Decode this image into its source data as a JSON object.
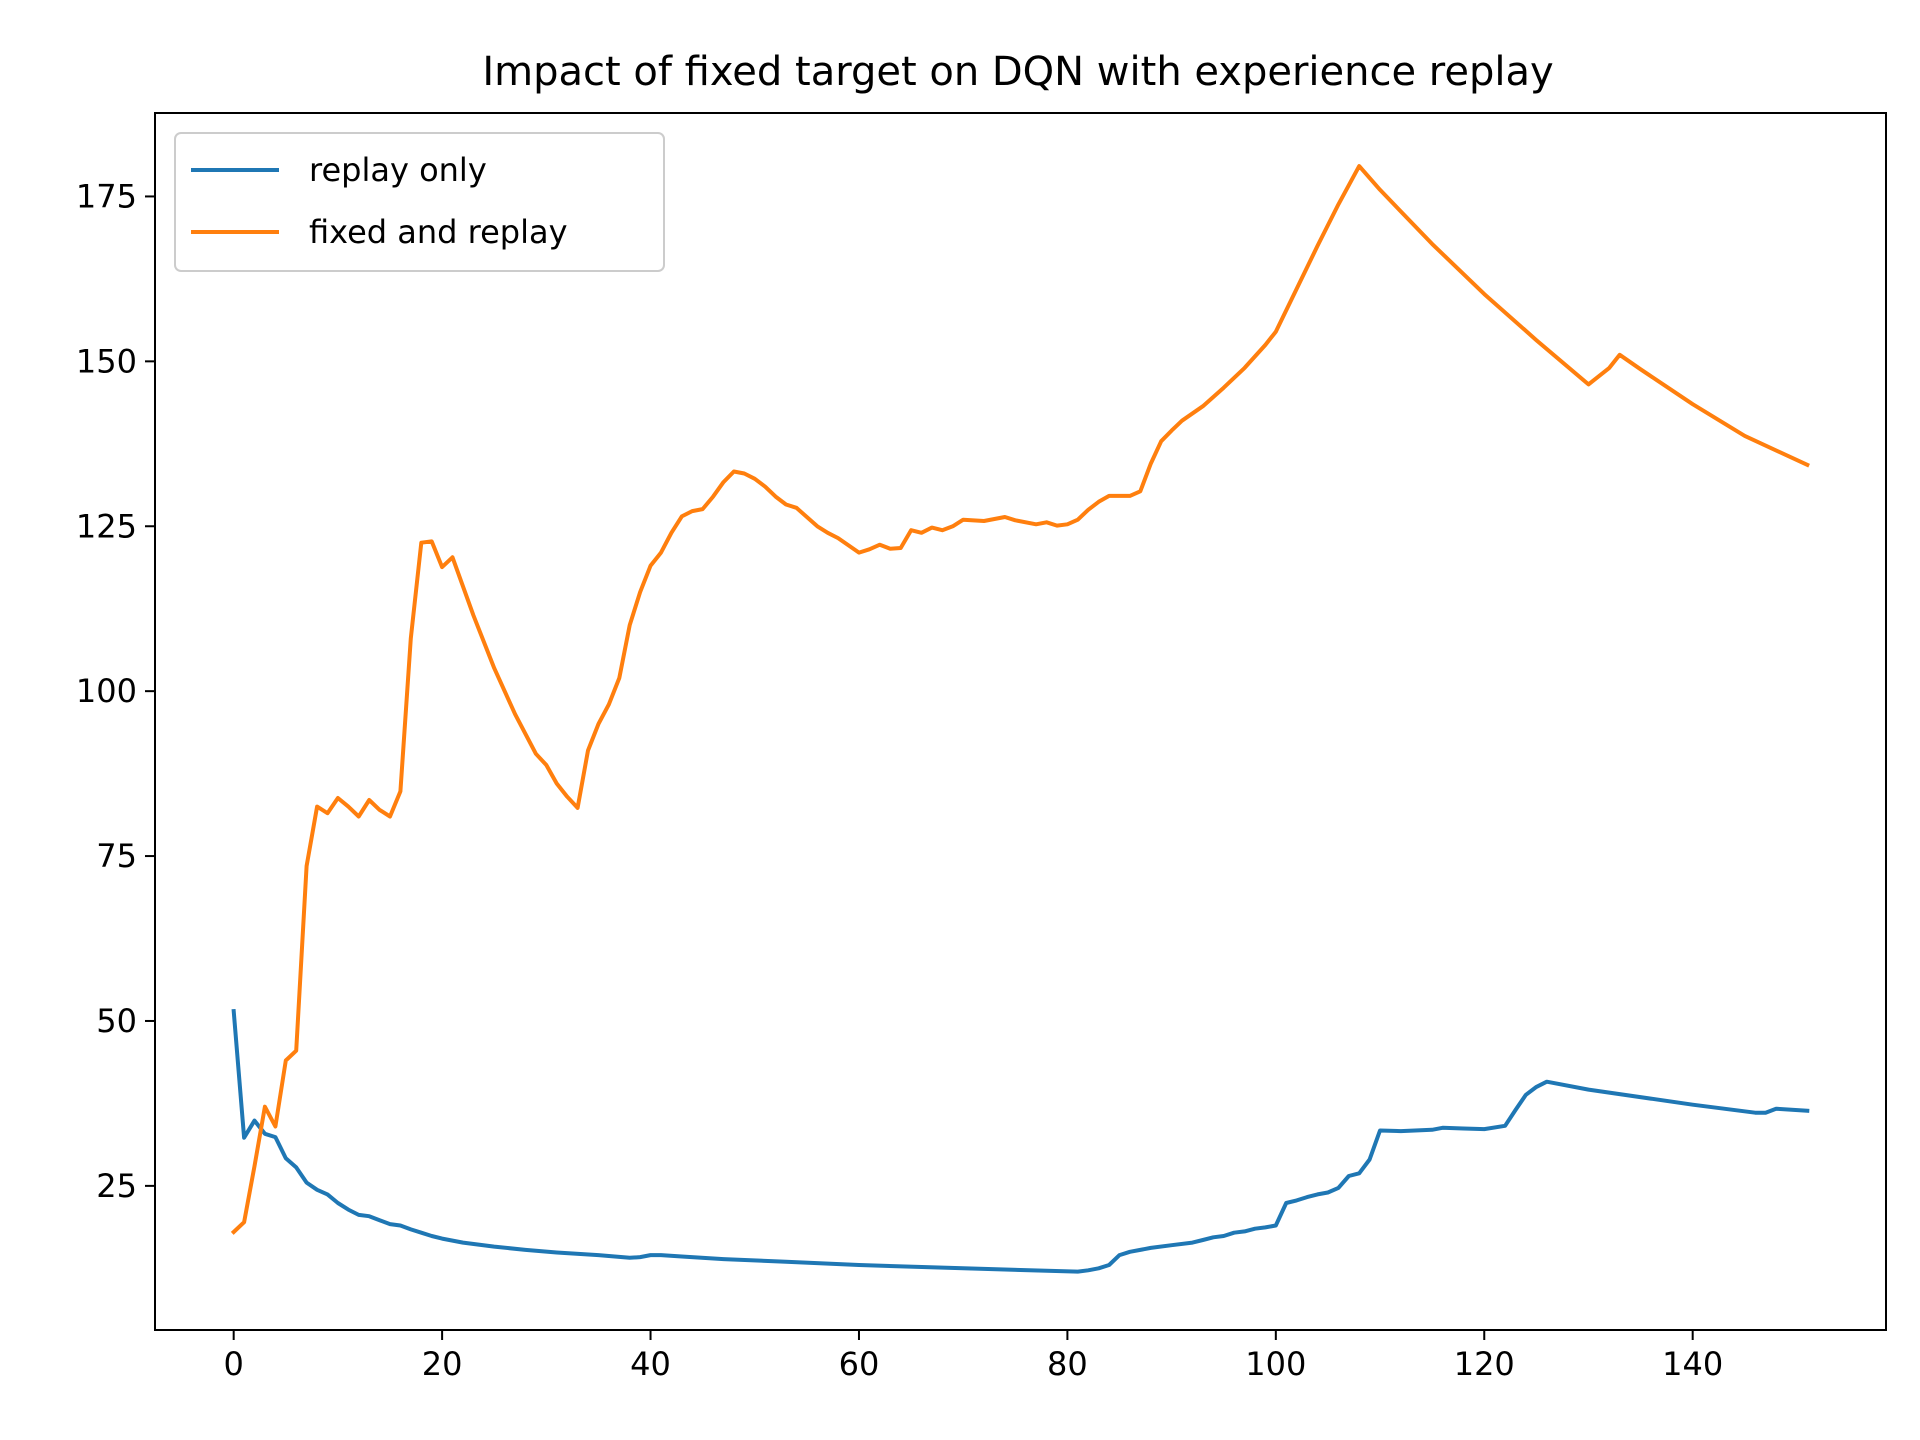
{
  "chart_data": {
    "type": "line",
    "title": "Impact of fixed target on DQN with experience replay",
    "xlabel": "",
    "ylabel": "",
    "xlim": [
      -7.55,
      158.55
    ],
    "ylim": [
      3.15,
      187.65
    ],
    "xticks": [
      0,
      20,
      40,
      60,
      80,
      100,
      120,
      140
    ],
    "yticks": [
      25,
      50,
      75,
      100,
      125,
      150,
      175
    ],
    "grid": false,
    "legend": "top-left",
    "series": [
      {
        "name": "replay only",
        "color": "#1f77b4",
        "points": [
          [
            0,
            51.5
          ],
          [
            1,
            32.3
          ],
          [
            2,
            34.9
          ],
          [
            3,
            32.9
          ],
          [
            4,
            32.4
          ],
          [
            5,
            29.2
          ],
          [
            6,
            27.8
          ],
          [
            7,
            25.5
          ],
          [
            8,
            24.4
          ],
          [
            9,
            23.7
          ],
          [
            10,
            22.4
          ],
          [
            11,
            21.4
          ],
          [
            12,
            20.6
          ],
          [
            13,
            20.4
          ],
          [
            14,
            19.8
          ],
          [
            15,
            19.2
          ],
          [
            16,
            19.0
          ],
          [
            17,
            18.4
          ],
          [
            18,
            17.9
          ],
          [
            19,
            17.4
          ],
          [
            20,
            17.0
          ],
          [
            22,
            16.4
          ],
          [
            25,
            15.8
          ],
          [
            28,
            15.3
          ],
          [
            31,
            14.9
          ],
          [
            35,
            14.5
          ],
          [
            38,
            14.1
          ],
          [
            39,
            14.2
          ],
          [
            40,
            14.5
          ],
          [
            41,
            14.5
          ],
          [
            43,
            14.3
          ],
          [
            47,
            13.9
          ],
          [
            53,
            13.5
          ],
          [
            60,
            13.0
          ],
          [
            70,
            12.5
          ],
          [
            81,
            12.0
          ],
          [
            82,
            12.2
          ],
          [
            83,
            12.5
          ],
          [
            84,
            13.0
          ],
          [
            85,
            14.5
          ],
          [
            86,
            15.0
          ],
          [
            87,
            15.3
          ],
          [
            88,
            15.6
          ],
          [
            90,
            16.0
          ],
          [
            92,
            16.4
          ],
          [
            93,
            16.8
          ],
          [
            94,
            17.2
          ],
          [
            95,
            17.4
          ],
          [
            96,
            17.9
          ],
          [
            97,
            18.1
          ],
          [
            98,
            18.5
          ],
          [
            99,
            18.7
          ],
          [
            100,
            19.0
          ],
          [
            101,
            22.4
          ],
          [
            102,
            22.8
          ],
          [
            103,
            23.3
          ],
          [
            104,
            23.7
          ],
          [
            105,
            24.0
          ],
          [
            106,
            24.7
          ],
          [
            107,
            26.5
          ],
          [
            108,
            26.9
          ],
          [
            109,
            29.0
          ],
          [
            110,
            33.4
          ],
          [
            112,
            33.3
          ],
          [
            115,
            33.5
          ],
          [
            116,
            33.8
          ],
          [
            118,
            33.7
          ],
          [
            120,
            33.6
          ],
          [
            122,
            34.1
          ],
          [
            123,
            36.5
          ],
          [
            124,
            38.8
          ],
          [
            125,
            40.0
          ],
          [
            126,
            40.8
          ],
          [
            130,
            39.6
          ],
          [
            140,
            37.3
          ],
          [
            146,
            36.1
          ],
          [
            147,
            36.1
          ],
          [
            148,
            36.7
          ],
          [
            151,
            36.4
          ]
        ]
      },
      {
        "name": "fixed and replay",
        "color": "#ff7f0e",
        "points": [
          [
            0,
            18.0
          ],
          [
            1,
            19.5
          ],
          [
            2,
            28.0
          ],
          [
            3,
            37.0
          ],
          [
            4,
            34.0
          ],
          [
            5,
            44.0
          ],
          [
            6,
            45.5
          ],
          [
            7,
            73.5
          ],
          [
            8,
            82.5
          ],
          [
            9,
            81.5
          ],
          [
            10,
            83.8
          ],
          [
            11,
            82.5
          ],
          [
            12,
            81.0
          ],
          [
            13,
            83.5
          ],
          [
            14,
            82.0
          ],
          [
            15,
            81.0
          ],
          [
            16,
            84.8
          ],
          [
            17,
            108.0
          ],
          [
            18,
            122.5
          ],
          [
            19,
            122.7
          ],
          [
            20,
            118.8
          ],
          [
            21,
            120.3
          ],
          [
            23,
            111.5
          ],
          [
            25,
            103.5
          ],
          [
            27,
            96.5
          ],
          [
            29,
            90.5
          ],
          [
            30,
            88.8
          ],
          [
            31,
            86.0
          ],
          [
            32,
            84.0
          ],
          [
            33,
            82.3
          ],
          [
            34,
            91.0
          ],
          [
            35,
            95.0
          ],
          [
            36,
            98.0
          ],
          [
            37,
            102.0
          ],
          [
            38,
            110.0
          ],
          [
            39,
            115.0
          ],
          [
            40,
            119.0
          ],
          [
            41,
            121.0
          ],
          [
            42,
            124.0
          ],
          [
            43,
            126.5
          ],
          [
            44,
            127.3
          ],
          [
            45,
            127.6
          ],
          [
            46,
            129.5
          ],
          [
            47,
            131.7
          ],
          [
            48,
            133.3
          ],
          [
            49,
            133.0
          ],
          [
            50,
            132.2
          ],
          [
            51,
            131.0
          ],
          [
            52,
            129.5
          ],
          [
            53,
            128.3
          ],
          [
            54,
            127.8
          ],
          [
            56,
            125.0
          ],
          [
            57,
            124.0
          ],
          [
            58,
            123.2
          ],
          [
            60,
            121.0
          ],
          [
            61,
            121.5
          ],
          [
            62,
            122.2
          ],
          [
            63,
            121.6
          ],
          [
            64,
            121.7
          ],
          [
            65,
            124.4
          ],
          [
            66,
            124.0
          ],
          [
            67,
            124.8
          ],
          [
            68,
            124.4
          ],
          [
            69,
            125.0
          ],
          [
            70,
            126.0
          ],
          [
            72,
            125.8
          ],
          [
            74,
            126.4
          ],
          [
            75,
            125.9
          ],
          [
            77,
            125.3
          ],
          [
            78,
            125.6
          ],
          [
            79,
            125.1
          ],
          [
            80,
            125.3
          ],
          [
            81,
            126.0
          ],
          [
            82,
            127.5
          ],
          [
            83,
            128.7
          ],
          [
            84,
            129.6
          ],
          [
            86,
            129.6
          ],
          [
            87,
            130.3
          ],
          [
            88,
            134.5
          ],
          [
            89,
            137.9
          ],
          [
            90,
            139.5
          ],
          [
            91,
            141.0
          ],
          [
            93,
            143.2
          ],
          [
            95,
            146.0
          ],
          [
            97,
            149.0
          ],
          [
            99,
            152.5
          ],
          [
            100,
            154.5
          ],
          [
            102,
            161.0
          ],
          [
            104,
            167.5
          ],
          [
            106,
            173.8
          ],
          [
            108,
            179.6
          ],
          [
            110,
            176.0
          ],
          [
            115,
            167.8
          ],
          [
            120,
            160.2
          ],
          [
            125,
            153.2
          ],
          [
            130,
            146.5
          ],
          [
            132,
            149.0
          ],
          [
            133,
            151.0
          ],
          [
            135,
            148.8
          ],
          [
            140,
            143.5
          ],
          [
            145,
            138.7
          ],
          [
            151,
            134.3
          ]
        ]
      }
    ]
  }
}
